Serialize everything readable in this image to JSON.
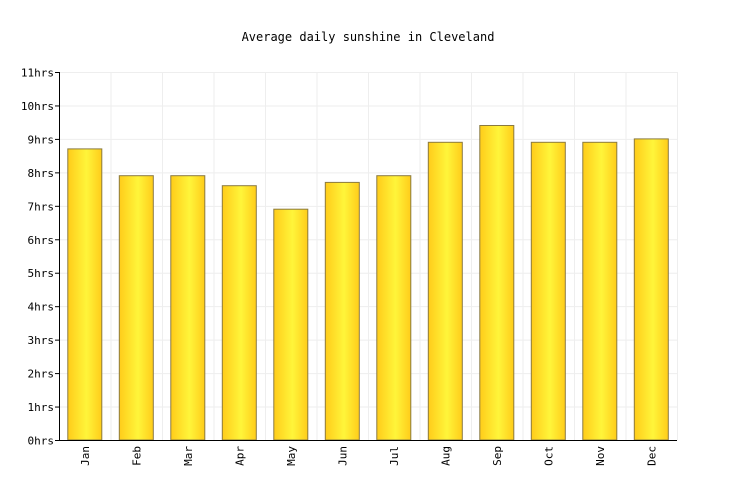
{
  "chart_data": {
    "type": "bar",
    "title": "Average daily sunshine in Cleveland",
    "xlabel": "",
    "ylabel": "",
    "categories": [
      "Jan",
      "Feb",
      "Mar",
      "Apr",
      "May",
      "Jun",
      "Jul",
      "Aug",
      "Sep",
      "Oct",
      "Nov",
      "Dec"
    ],
    "values": [
      8.7,
      7.9,
      7.9,
      7.6,
      6.9,
      7.7,
      7.9,
      8.9,
      9.4,
      8.9,
      8.9,
      9.0
    ],
    "ylim": [
      0,
      11
    ],
    "yticks": [
      "0hrs",
      "1hrs",
      "2hrs",
      "3hrs",
      "4hrs",
      "5hrs",
      "6hrs",
      "7hrs",
      "8hrs",
      "9hrs",
      "10hrs",
      "11hrs"
    ],
    "grid": true,
    "legend": "none",
    "colors": {
      "bar_light": "#fff53a",
      "bar_dark": "#ffcc1a",
      "bar_stroke": "#8a7a40",
      "grid": "#eeeeee",
      "axis": "#000000",
      "text": "#000000"
    }
  }
}
